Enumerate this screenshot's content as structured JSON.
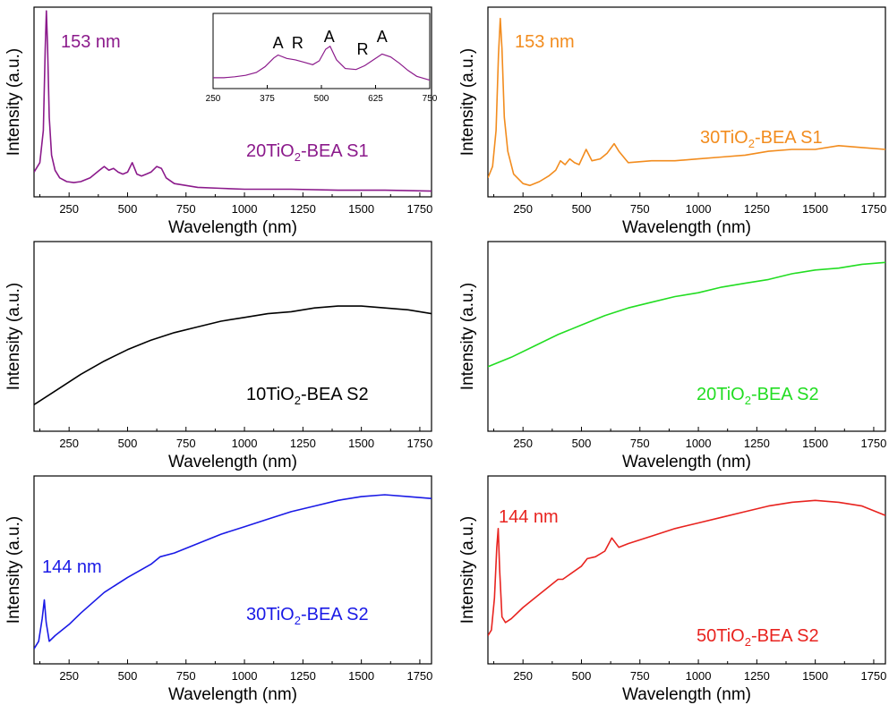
{
  "chart_data": [
    {
      "type": "line",
      "title": "",
      "xlabel": "Wavelength (nm)",
      "ylabel": "Intensity (a.u.)",
      "xlim": [
        100,
        1800
      ],
      "ylim": [
        0,
        1
      ],
      "xticks": [
        "250",
        "500",
        "750",
        "1000",
        "1250",
        "1500",
        "1750"
      ],
      "color": "#8B1A8B",
      "series": [
        {
          "name": "20TiO2-BEA S1",
          "x": [
            100,
            125,
            140,
            148,
            153,
            158,
            165,
            175,
            190,
            210,
            240,
            270,
            300,
            340,
            380,
            400,
            420,
            440,
            460,
            480,
            500,
            520,
            540,
            560,
            580,
            600,
            625,
            645,
            665,
            700,
            750,
            800,
            900,
            1000,
            1200,
            1400,
            1600,
            1800
          ],
          "y": [
            0.13,
            0.18,
            0.35,
            0.78,
            0.98,
            0.8,
            0.42,
            0.22,
            0.14,
            0.1,
            0.08,
            0.075,
            0.08,
            0.1,
            0.14,
            0.16,
            0.14,
            0.15,
            0.13,
            0.12,
            0.13,
            0.18,
            0.12,
            0.11,
            0.12,
            0.13,
            0.16,
            0.15,
            0.1,
            0.07,
            0.06,
            0.05,
            0.045,
            0.04,
            0.04,
            0.035,
            0.035,
            0.03
          ]
        }
      ],
      "annotations": [
        {
          "text": "153 nm"
        },
        {
          "text": "20TiO",
          "sub": "2",
          "suffix": "-BEA S1"
        }
      ],
      "inset": {
        "xlim": [
          250,
          750
        ],
        "xticks": [
          "250",
          "375",
          "500",
          "625",
          "750"
        ],
        "x": [
          250,
          275,
          300,
          325,
          350,
          370,
          390,
          400,
          420,
          440,
          460,
          480,
          495,
          510,
          520,
          535,
          555,
          580,
          600,
          620,
          640,
          660,
          680,
          700,
          720,
          750
        ],
        "y": [
          0.15,
          0.15,
          0.17,
          0.2,
          0.26,
          0.38,
          0.56,
          0.62,
          0.55,
          0.52,
          0.47,
          0.42,
          0.5,
          0.74,
          0.8,
          0.52,
          0.34,
          0.32,
          0.4,
          0.52,
          0.64,
          0.58,
          0.45,
          0.3,
          0.18,
          0.1
        ],
        "peak_labels": [
          {
            "text": "A",
            "x": 400
          },
          {
            "text": "R",
            "x": 445
          },
          {
            "text": "A",
            "x": 518
          },
          {
            "text": "R",
            "x": 595
          },
          {
            "text": "A",
            "x": 640
          }
        ]
      }
    },
    {
      "type": "line",
      "title": "",
      "xlabel": "Wavelength (nm)",
      "ylabel": "Intensity (a.u.)",
      "xlim": [
        100,
        1800
      ],
      "ylim": [
        0,
        1
      ],
      "xticks": [
        "250",
        "500",
        "750",
        "1000",
        "1250",
        "1500",
        "1750"
      ],
      "color": "#F28C1E",
      "series": [
        {
          "name": "30TiO2-BEA S1",
          "x": [
            100,
            120,
            135,
            145,
            153,
            160,
            170,
            185,
            210,
            250,
            280,
            320,
            360,
            390,
            410,
            430,
            450,
            470,
            490,
            520,
            545,
            580,
            610,
            640,
            660,
            700,
            800,
            900,
            1000,
            1100,
            1200,
            1300,
            1400,
            1500,
            1600,
            1700,
            1800
          ],
          "y": [
            0.1,
            0.16,
            0.35,
            0.75,
            0.94,
            0.78,
            0.42,
            0.24,
            0.12,
            0.07,
            0.06,
            0.08,
            0.11,
            0.14,
            0.19,
            0.17,
            0.2,
            0.18,
            0.17,
            0.25,
            0.19,
            0.2,
            0.23,
            0.28,
            0.24,
            0.18,
            0.19,
            0.19,
            0.2,
            0.21,
            0.22,
            0.24,
            0.25,
            0.25,
            0.27,
            0.26,
            0.25
          ]
        }
      ],
      "annotations": [
        {
          "text": "153 nm"
        },
        {
          "text": "30TiO",
          "sub": "2",
          "suffix": "-BEA S1"
        }
      ]
    },
    {
      "type": "line",
      "title": "",
      "xlabel": "Wavelength (nm)",
      "ylabel": "Intensity (a.u.)",
      "xlim": [
        100,
        1800
      ],
      "ylim": [
        0,
        1
      ],
      "xticks": [
        "250",
        "500",
        "750",
        "1000",
        "1250",
        "1500",
        "1750"
      ],
      "color": "#000000",
      "series": [
        {
          "name": "10TiO2-BEA S2",
          "x": [
            100,
            200,
            300,
            400,
            500,
            600,
            700,
            800,
            900,
            1000,
            1100,
            1200,
            1300,
            1400,
            1500,
            1600,
            1700,
            1800
          ],
          "y": [
            0.14,
            0.22,
            0.3,
            0.37,
            0.43,
            0.48,
            0.52,
            0.55,
            0.58,
            0.6,
            0.62,
            0.63,
            0.65,
            0.66,
            0.66,
            0.65,
            0.64,
            0.62
          ]
        }
      ],
      "annotations": [
        {
          "text": "10TiO",
          "sub": "2",
          "suffix": "-BEA S2"
        }
      ]
    },
    {
      "type": "line",
      "title": "",
      "xlabel": "Wavelength (nm)",
      "ylabel": "Intensity (a.u.)",
      "xlim": [
        100,
        1800
      ],
      "ylim": [
        0,
        1
      ],
      "xticks": [
        "250",
        "500",
        "750",
        "1000",
        "1250",
        "1500",
        "1750"
      ],
      "color": "#22DD22",
      "series": [
        {
          "name": "20TiO2-BEA S2",
          "x": [
            100,
            200,
            300,
            400,
            500,
            600,
            700,
            800,
            900,
            1000,
            1100,
            1200,
            1300,
            1400,
            1500,
            1600,
            1700,
            1800
          ],
          "y": [
            0.34,
            0.39,
            0.45,
            0.51,
            0.56,
            0.61,
            0.65,
            0.68,
            0.71,
            0.73,
            0.76,
            0.78,
            0.8,
            0.83,
            0.85,
            0.86,
            0.88,
            0.89
          ]
        }
      ],
      "annotations": [
        {
          "text": "20TiO",
          "sub": "2",
          "suffix": "-BEA S2"
        }
      ]
    },
    {
      "type": "line",
      "title": "",
      "xlabel": "Wavelength (nm)",
      "ylabel": "Intensity (a.u.)",
      "xlim": [
        100,
        1800
      ],
      "ylim": [
        0,
        1
      ],
      "xticks": [
        "250",
        "500",
        "750",
        "1000",
        "1250",
        "1500",
        "1750"
      ],
      "color": "#1A1AE6",
      "series": [
        {
          "name": "30TiO2-BEA S2",
          "x": [
            100,
            120,
            135,
            144,
            152,
            165,
            190,
            250,
            300,
            400,
            500,
            600,
            640,
            700,
            800,
            900,
            1000,
            1100,
            1200,
            1300,
            1400,
            1500,
            1600,
            1700,
            1800
          ],
          "y": [
            0.08,
            0.12,
            0.24,
            0.34,
            0.22,
            0.12,
            0.15,
            0.21,
            0.27,
            0.38,
            0.46,
            0.53,
            0.57,
            0.59,
            0.64,
            0.69,
            0.73,
            0.77,
            0.81,
            0.84,
            0.87,
            0.89,
            0.9,
            0.89,
            0.88
          ]
        }
      ],
      "annotations": [
        {
          "text": "144 nm"
        },
        {
          "text": "30TiO",
          "sub": "2",
          "suffix": "-BEA S2"
        }
      ]
    },
    {
      "type": "line",
      "title": "",
      "xlabel": "Wavelength (nm)",
      "ylabel": "Intensity (a.u.)",
      "xlim": [
        100,
        1800
      ],
      "ylim": [
        0,
        1
      ],
      "xticks": [
        "250",
        "500",
        "750",
        "1000",
        "1250",
        "1500",
        "1750"
      ],
      "color": "#E8231F",
      "series": [
        {
          "name": "50TiO2-BEA S2",
          "x": [
            100,
            115,
            128,
            138,
            144,
            150,
            160,
            175,
            200,
            250,
            300,
            350,
            400,
            420,
            500,
            525,
            560,
            600,
            630,
            660,
            700,
            800,
            900,
            1000,
            1100,
            1200,
            1300,
            1400,
            1500,
            1600,
            1700,
            1800
          ],
          "y": [
            0.15,
            0.18,
            0.35,
            0.62,
            0.72,
            0.5,
            0.25,
            0.22,
            0.24,
            0.3,
            0.35,
            0.4,
            0.45,
            0.45,
            0.52,
            0.56,
            0.57,
            0.6,
            0.67,
            0.62,
            0.64,
            0.68,
            0.72,
            0.75,
            0.78,
            0.81,
            0.84,
            0.86,
            0.87,
            0.86,
            0.84,
            0.79
          ]
        }
      ],
      "annotations": [
        {
          "text": "144 nm"
        },
        {
          "text": "50TiO",
          "sub": "2",
          "suffix": "-BEA S2"
        }
      ]
    }
  ]
}
